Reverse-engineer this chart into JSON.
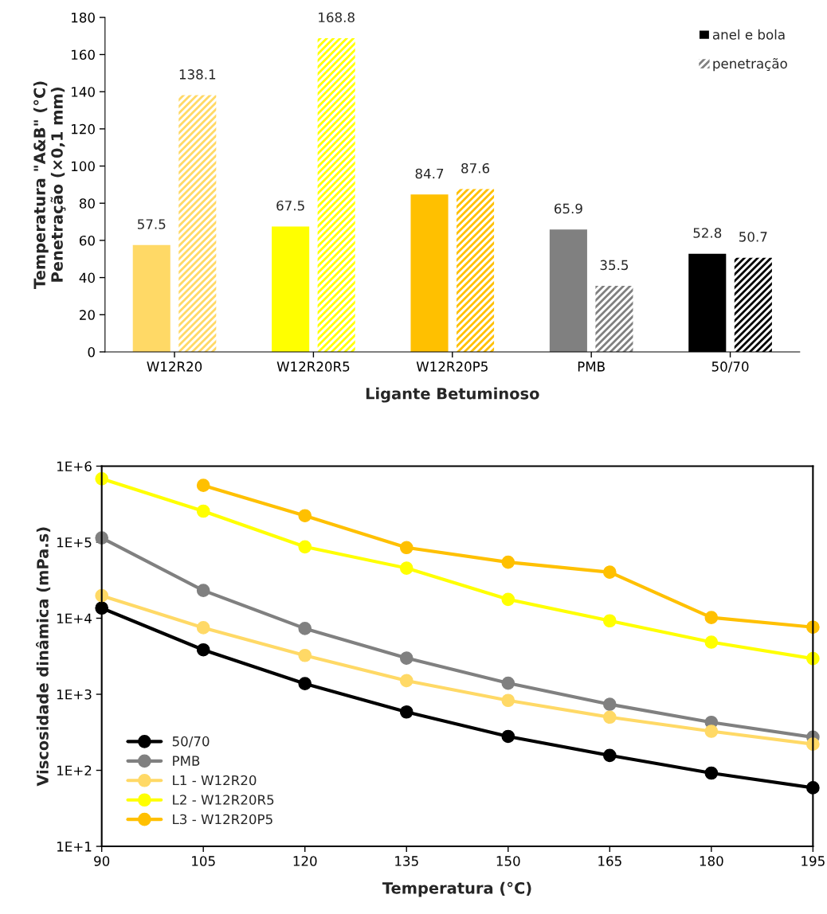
{
  "chart_data": [
    {
      "type": "bar",
      "xlabel": "Ligante Betuminoso",
      "ylabel": "Temperatura \"A&B\" (°C)\nPenetração (×0,1 mm)",
      "categories": [
        "W12R20",
        "W12R20R5",
        "W12R20P5",
        "PMB",
        "50/70"
      ],
      "series": [
        {
          "name": "anel e bola",
          "color": "#000000",
          "colors": [
            "#ffd966",
            "#ffff00",
            "#ffc000",
            "#808080",
            "#000000"
          ],
          "values": [
            57.5,
            67.5,
            84.7,
            65.9,
            52.8
          ]
        },
        {
          "name": "penetração",
          "color": "#808080",
          "colors": [
            "#ffd966",
            "#ffff00",
            "#ffc000",
            "#808080",
            "#000000"
          ],
          "values": [
            138.1,
            168.8,
            87.6,
            35.5,
            50.7
          ]
        }
      ],
      "ylim": [
        0,
        180
      ],
      "yticks": [
        0,
        20,
        40,
        60,
        80,
        100,
        120,
        140,
        160,
        180
      ],
      "grid": false,
      "legend": "top right",
      "data_labels": true
    },
    {
      "type": "line",
      "xlabel": "Temperatura (°C)",
      "ylabel": "Viscosidade dinâmica (mPa.s)",
      "log": "y",
      "x": [
        90,
        105,
        120,
        135,
        150,
        165,
        180,
        195
      ],
      "series": [
        {
          "name": "50/70",
          "color": "#000000",
          "values": [
            13600,
            3840,
            1380,
            585,
            279,
            157,
            92,
            59
          ]
        },
        {
          "name": "PMB",
          "color": "#808080",
          "values": [
            114000,
            23200,
            7330,
            2990,
            1400,
            738,
            428,
            273
          ]
        },
        {
          "name": "L1 - W12R20",
          "color": "#ffd966",
          "values": [
            19800,
            7500,
            3240,
            1510,
            830,
            500,
            326,
            221
          ]
        },
        {
          "name": "L2 - W12R20R5",
          "color": "#ffff00",
          "values": [
            682000,
            256000,
            86900,
            45600,
            17700,
            9250,
            4850,
            2950
          ]
        },
        {
          "name": "L3 - W12R20P5",
          "color": "#ffc000",
          "values": [
            null,
            558000,
            223000,
            84900,
            54500,
            40300,
            10200,
            7630
          ]
        }
      ],
      "xlim": [
        90,
        195
      ],
      "xticks": [
        90,
        105,
        120,
        135,
        150,
        165,
        180,
        195
      ],
      "ylim": [
        10,
        1000000
      ],
      "yticks": [
        {
          "value": 10,
          "label": "1E+1"
        },
        {
          "value": 100,
          "label": "1E+2"
        },
        {
          "value": 1000,
          "label": "1E+3"
        },
        {
          "value": 10000,
          "label": "1E+4"
        },
        {
          "value": 100000,
          "label": "1E+5"
        },
        {
          "value": 1000000,
          "label": "1E+6"
        }
      ],
      "grid": false,
      "legend": "bottom left",
      "marker": "circle",
      "line_style": "solid"
    }
  ]
}
